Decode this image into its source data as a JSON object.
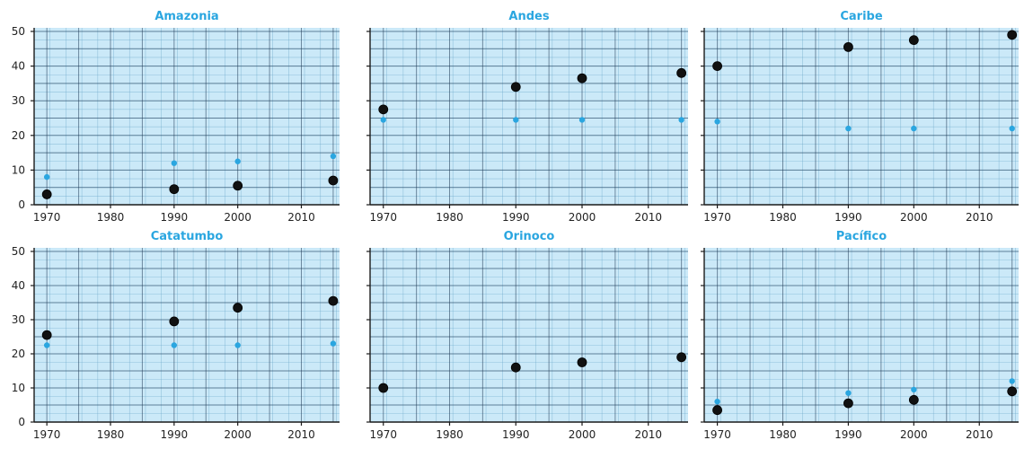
{
  "chart_data": [
    {
      "type": "scatter",
      "title": "Amazonia",
      "xlim": [
        1968,
        2016
      ],
      "ylim": [
        0,
        50
      ],
      "xticks": [
        1970,
        1980,
        1990,
        2000,
        2010
      ],
      "yticks": [
        0,
        10,
        20,
        30,
        40,
        50
      ],
      "grid": true,
      "series": [
        {
          "color": "#111111",
          "marker": "large-dot",
          "x": [
            1970,
            1990,
            2000,
            2015
          ],
          "y": [
            3,
            4.5,
            5.5,
            7
          ]
        },
        {
          "color": "#2aa6e0",
          "marker": "small-dot",
          "x": [
            1970,
            1990,
            2000,
            2015
          ],
          "y": [
            8,
            12,
            12.5,
            14
          ]
        }
      ]
    },
    {
      "type": "scatter",
      "title": "Andes",
      "xlim": [
        1968,
        2016
      ],
      "ylim": [
        0,
        50
      ],
      "xticks": [
        1970,
        1980,
        1990,
        2000,
        2010
      ],
      "yticks": [
        0,
        10,
        20,
        30,
        40,
        50
      ],
      "grid": true,
      "series": [
        {
          "color": "#111111",
          "marker": "large-dot",
          "x": [
            1970,
            1990,
            2000,
            2015
          ],
          "y": [
            27.5,
            34,
            36.5,
            38
          ]
        },
        {
          "color": "#2aa6e0",
          "marker": "small-dot",
          "x": [
            1970,
            1990,
            2000,
            2015
          ],
          "y": [
            24.5,
            24.5,
            24.5,
            24.5
          ]
        }
      ]
    },
    {
      "type": "scatter",
      "title": "Caribe",
      "xlim": [
        1968,
        2016
      ],
      "ylim": [
        0,
        50
      ],
      "xticks": [
        1970,
        1980,
        1990,
        2000,
        2010
      ],
      "yticks": [
        0,
        10,
        20,
        30,
        40,
        50
      ],
      "grid": true,
      "series": [
        {
          "color": "#111111",
          "marker": "large-dot",
          "x": [
            1970,
            1990,
            2000,
            2015
          ],
          "y": [
            40,
            45.5,
            47.5,
            49
          ]
        },
        {
          "color": "#2aa6e0",
          "marker": "small-dot",
          "x": [
            1970,
            1990,
            2000,
            2015
          ],
          "y": [
            24,
            22,
            22,
            22
          ]
        }
      ]
    },
    {
      "type": "scatter",
      "title": "Catatumbo",
      "xlim": [
        1968,
        2016
      ],
      "ylim": [
        0,
        50
      ],
      "xticks": [
        1970,
        1980,
        1990,
        2000,
        2010
      ],
      "yticks": [
        0,
        10,
        20,
        30,
        40,
        50
      ],
      "grid": true,
      "series": [
        {
          "color": "#111111",
          "marker": "large-dot",
          "x": [
            1970,
            1990,
            2000,
            2015
          ],
          "y": [
            25.5,
            29.5,
            33.5,
            35.5
          ]
        },
        {
          "color": "#2aa6e0",
          "marker": "small-dot",
          "x": [
            1970,
            1990,
            2000,
            2015
          ],
          "y": [
            22.5,
            22.5,
            22.5,
            23
          ]
        }
      ]
    },
    {
      "type": "scatter",
      "title": "Orinoco",
      "xlim": [
        1968,
        2016
      ],
      "ylim": [
        0,
        50
      ],
      "xticks": [
        1970,
        1980,
        1990,
        2000,
        2010
      ],
      "yticks": [
        0,
        10,
        20,
        30,
        40,
        50
      ],
      "grid": true,
      "series": [
        {
          "color": "#111111",
          "marker": "large-dot",
          "x": [
            1970,
            1990,
            2000,
            2015
          ],
          "y": [
            10,
            16,
            17.5,
            19
          ]
        },
        {
          "color": "#2aa6e0",
          "marker": "small-dot",
          "x": [
            1970,
            1990,
            2000,
            2015
          ],
          "y": [
            10,
            16.5,
            17.5,
            19
          ]
        }
      ]
    },
    {
      "type": "scatter",
      "title": "Pacífico",
      "xlim": [
        1968,
        2016
      ],
      "ylim": [
        0,
        50
      ],
      "xticks": [
        1970,
        1980,
        1990,
        2000,
        2010
      ],
      "yticks": [
        0,
        10,
        20,
        30,
        40,
        50
      ],
      "grid": true,
      "series": [
        {
          "color": "#111111",
          "marker": "large-dot",
          "x": [
            1970,
            1990,
            2000,
            2015
          ],
          "y": [
            3.5,
            5.5,
            6.5,
            9
          ]
        },
        {
          "color": "#2aa6e0",
          "marker": "small-dot",
          "x": [
            1970,
            1990,
            2000,
            2015
          ],
          "y": [
            6,
            8.5,
            9.5,
            12
          ]
        }
      ]
    }
  ],
  "colors": {
    "paper": "#cbe9f8",
    "title": "#2aa6e0",
    "grid": "#1f3a55"
  }
}
